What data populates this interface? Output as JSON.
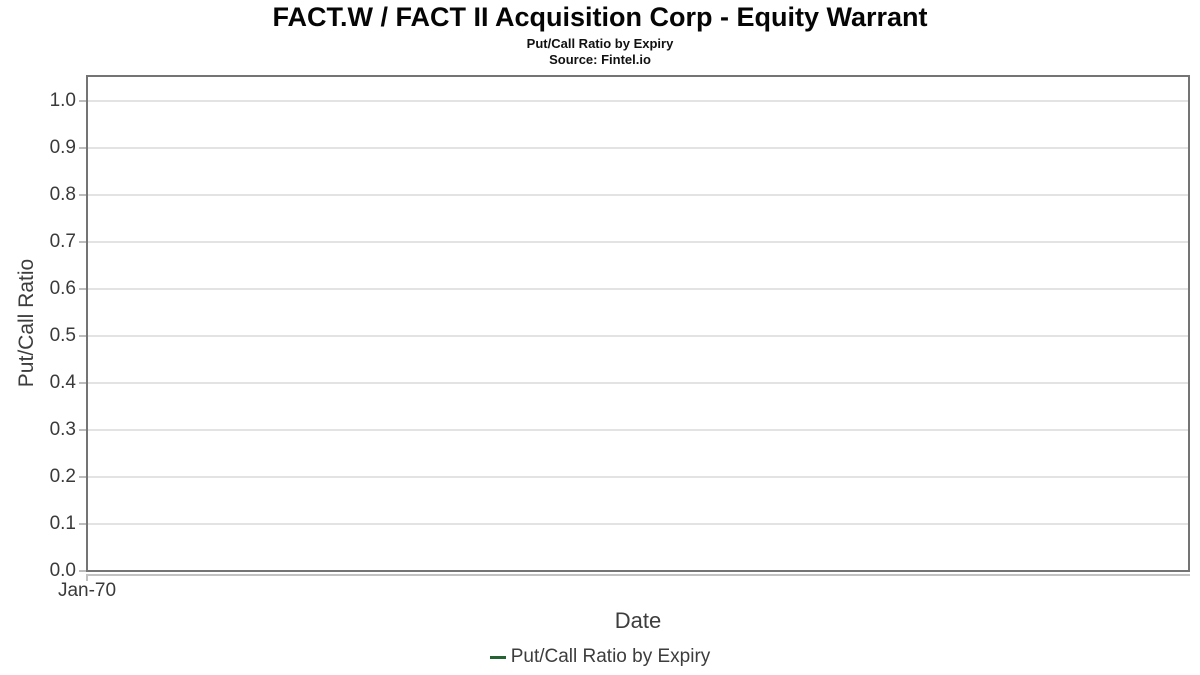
{
  "header": {
    "title": "FACT.W / FACT II Acquisition Corp - Equity Warrant",
    "subtitle": "Put/Call Ratio by Expiry",
    "source": "Source: Fintel.io"
  },
  "chart_data": {
    "type": "line",
    "title": "FACT.W / FACT II Acquisition Corp - Equity Warrant",
    "subtitle": "Put/Call Ratio by Expiry",
    "source": "Source: Fintel.io",
    "xlabel": "Date",
    "ylabel": "Put/Call Ratio",
    "ylim": [
      0.0,
      1.05
    ],
    "yticks": [
      "0.0",
      "0.1",
      "0.2",
      "0.3",
      "0.4",
      "0.5",
      "0.6",
      "0.7",
      "0.8",
      "0.9",
      "1.0"
    ],
    "xticks": [
      "Jan-70"
    ],
    "grid": "horizontal",
    "legend_position": "bottom",
    "legend": {
      "entries": [
        {
          "label": "Put/Call Ratio by Expiry",
          "color": "#266333"
        }
      ]
    },
    "series": [
      {
        "name": "Put/Call Ratio by Expiry",
        "x": [],
        "values": []
      }
    ],
    "colors": {
      "series_green": "#266333",
      "plot_border": "#747474",
      "gridline": "#e3e3e3",
      "axis_line": "#c2c2c2",
      "text": "#3a3a3a"
    }
  }
}
